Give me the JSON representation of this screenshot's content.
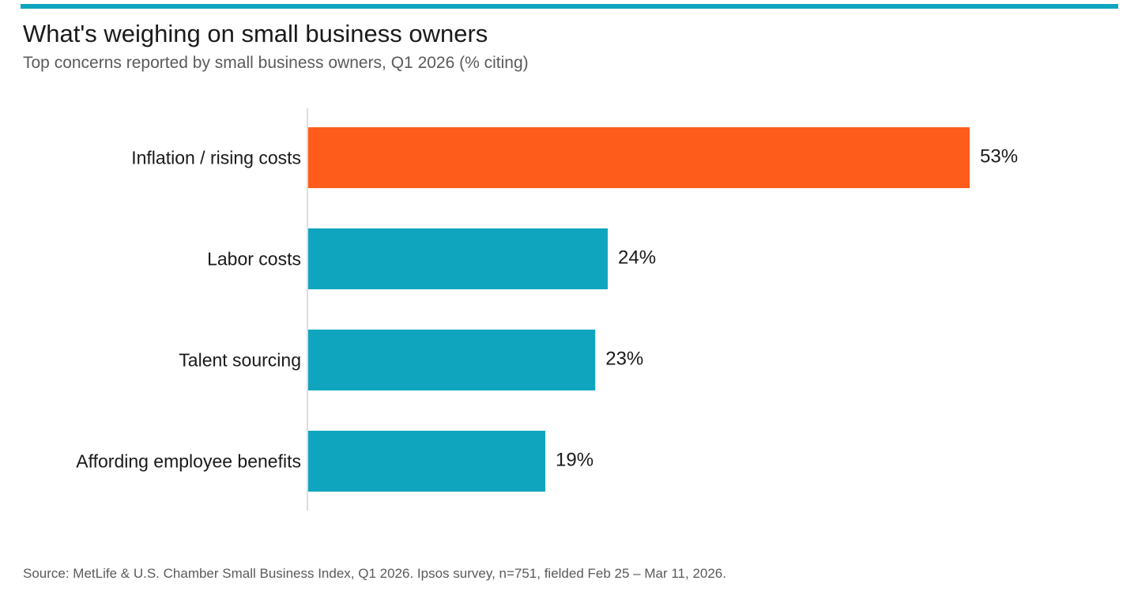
{
  "header": {
    "title": "What's weighing on small business owners",
    "subtitle": "Top concerns reported by small business owners, Q1 2026 (% citing)"
  },
  "chart_data": {
    "type": "bar",
    "orientation": "horizontal",
    "categories": [
      "Inflation / rising costs",
      "Labor costs",
      "Talent sourcing",
      "Affording employee benefits"
    ],
    "values": [
      53,
      24,
      23,
      19
    ],
    "value_labels": [
      "53%",
      "24%",
      "23%",
      "19%"
    ],
    "unit": "%",
    "title": "What's weighing on small business owners",
    "subtitle": "Top concerns reported by small business owners, Q1 2026 (% citing)",
    "xlabel": "",
    "ylabel": "",
    "xlim": [
      0,
      53
    ],
    "grid": false,
    "legend": "none",
    "colors": {
      "highlight": "#fe5c1b",
      "default": "#0fa5bf",
      "axis": "#dddddd",
      "accent_rule": "#0fa5bf"
    },
    "highlight_index": 0
  },
  "footer": {
    "source": "Source: MetLife & U.S. Chamber Small Business Index, Q1 2026. Ipsos survey, n=751, fielded Feb 25 – Mar 11, 2026."
  }
}
